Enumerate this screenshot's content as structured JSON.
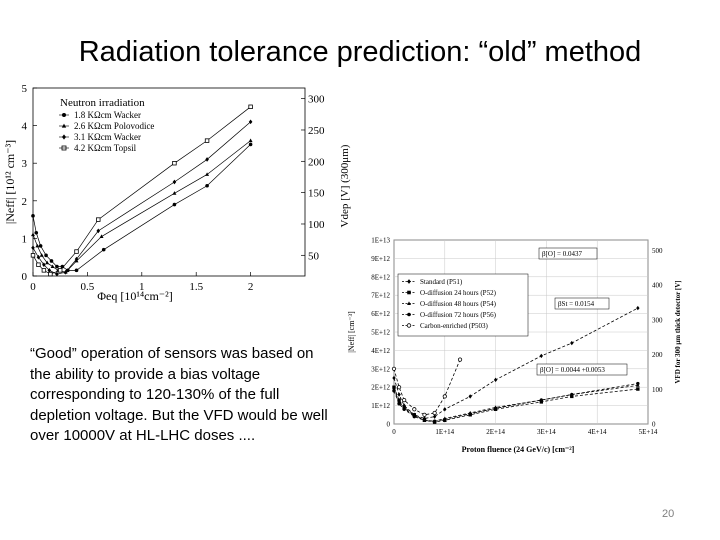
{
  "slide": {
    "title": "Radiation tolerance prediction: “old” method",
    "body": "“Good” operation of sensors was based on the ability to provide a bias voltage corresponding to 120-130% of the full depletion voltage.  But the VFD would be well over 10000V at HL-LHC doses ....",
    "page_number": "20"
  },
  "chart_data": [
    {
      "type": "line",
      "xlabel": "Φeq [10¹⁴cm⁻²]",
      "ylabel": "|Neff| [10¹² cm⁻³]",
      "y2label": "Vdep [V]  (300μm)",
      "xlim": [
        0,
        2.5
      ],
      "ylim": [
        0,
        5
      ],
      "xticks": [
        "0",
        "0.5",
        "1",
        "1.5",
        "2"
      ],
      "yticks": [
        "0",
        "1",
        "2",
        "3",
        "4",
        "5"
      ],
      "y2ticks": [
        "50",
        "100",
        "150",
        "200",
        "250",
        "300"
      ],
      "legend_title": "Neutron irradiation",
      "legend_position": "top-left",
      "series": [
        {
          "name": "1.8 KΩcm Wacker",
          "marker": "circle",
          "x": [
            0,
            0.03,
            0.07,
            0.12,
            0.17,
            0.22,
            0.27,
            0.32,
            0.4,
            0.65,
            1.3,
            1.6,
            2.0
          ],
          "y": [
            1.6,
            1.15,
            0.8,
            0.55,
            0.4,
            0.25,
            0.25,
            0.15,
            0.15,
            0.7,
            1.9,
            2.4,
            3.5
          ]
        },
        {
          "name": "2.6 KΩcm Polovodice",
          "marker": "triangle",
          "x": [
            0,
            0.04,
            0.08,
            0.13,
            0.18,
            0.23,
            0.3,
            0.4,
            0.63,
            1.3,
            1.6,
            2.0
          ],
          "y": [
            1.1,
            0.8,
            0.55,
            0.35,
            0.25,
            0.15,
            0.1,
            0.4,
            1.05,
            2.2,
            2.7,
            3.6
          ]
        },
        {
          "name": "3.1 KΩcm Wacker",
          "marker": "diamond",
          "x": [
            0,
            0.05,
            0.1,
            0.15,
            0.22,
            0.3,
            0.4,
            0.6,
            1.3,
            1.6,
            2.0
          ],
          "y": [
            0.75,
            0.5,
            0.3,
            0.15,
            0.05,
            0.1,
            0.45,
            1.2,
            2.5,
            3.1,
            4.1
          ]
        },
        {
          "name": "4.2 KΩcm Topsil",
          "marker": "open-square",
          "x": [
            0,
            0.05,
            0.1,
            0.16,
            0.25,
            0.4,
            0.6,
            1.3,
            1.6,
            2.0
          ],
          "y": [
            0.55,
            0.3,
            0.15,
            0.05,
            0.15,
            0.65,
            1.5,
            3.0,
            3.6,
            4.5
          ]
        }
      ]
    },
    {
      "type": "scatter",
      "xlabel": "Proton fluence (24 GeV/c) [cm⁻²]",
      "ylabel": "|Neff| [cm⁻³]",
      "y2label": "VFD for 300 μm thick detector [V]",
      "xlim": [
        0,
        500000000000000.0
      ],
      "ylim": [
        0,
        10000000000000.0
      ],
      "xticks": [
        "0",
        "1E+14",
        "2E+14",
        "3E+14",
        "4E+14",
        "5E+14"
      ],
      "yticks": [
        "0",
        "1E+12",
        "2E+12",
        "3E+12",
        "4E+12",
        "5E+12",
        "6E+12",
        "7E+12",
        "8E+12",
        "9E+12",
        "1E+13"
      ],
      "y2ticks": [
        "0",
        "100",
        "200",
        "300",
        "400",
        "500"
      ],
      "legend_position": "top-left",
      "annotations": [
        "β[O] = 0.0437",
        "βSt = 0.0154",
        "β[O] = 0.0044 +0.0053"
      ],
      "series": [
        {
          "name": "Standard (P51)",
          "marker": "diamond",
          "x": [
            0,
            10000000000000.0,
            20000000000000.0,
            40000000000000.0,
            60000000000000.0,
            80000000000000.0,
            100000000000000.0,
            150000000000000.0,
            200000000000000.0,
            290000000000000.0,
            350000000000000.0,
            480000000000000.0
          ],
          "y": [
            2500000000000.0,
            1600000000000.0,
            1000000000000.0,
            500000000000.0,
            300000000000.0,
            400000000000.0,
            800000000000.0,
            1500000000000.0,
            2400000000000.0,
            3700000000000.0,
            4400000000000.0,
            6300000000000.0
          ]
        },
        {
          "name": "O-diffusion 24 hours (P52)",
          "marker": "square",
          "x": [
            0,
            10000000000000.0,
            20000000000000.0,
            40000000000000.0,
            60000000000000.0,
            80000000000000.0,
            100000000000000.0,
            150000000000000.0,
            200000000000000.0,
            290000000000000.0,
            350000000000000.0,
            480000000000000.0
          ],
          "y": [
            2000000000000.0,
            1300000000000.0,
            900000000000.0,
            500000000000.0,
            200000000000.0,
            100000000000.0,
            200000000000.0,
            500000000000.0,
            800000000000.0,
            1200000000000.0,
            1500000000000.0,
            1900000000000.0
          ]
        },
        {
          "name": "O-diffusion 48 hours (P54)",
          "marker": "triangle",
          "x": [
            0,
            10000000000000.0,
            20000000000000.0,
            40000000000000.0,
            60000000000000.0,
            80000000000000.0,
            100000000000000.0,
            150000000000000.0,
            200000000000000.0,
            290000000000000.0,
            350000000000000.0,
            480000000000000.0
          ],
          "y": [
            1900000000000.0,
            1200000000000.0,
            850000000000.0,
            450000000000.0,
            200000000000.0,
            150000000000.0,
            300000000000.0,
            600000000000.0,
            900000000000.0,
            1300000000000.0,
            1600000000000.0,
            2100000000000.0
          ]
        },
        {
          "name": "O-diffusion 72 hours (P56)",
          "marker": "circle",
          "x": [
            0,
            10000000000000.0,
            20000000000000.0,
            40000000000000.0,
            60000000000000.0,
            80000000000000.0,
            100000000000000.0,
            150000000000000.0,
            200000000000000.0,
            290000000000000.0,
            350000000000000.0,
            480000000000000.0
          ],
          "y": [
            1800000000000.0,
            1100000000000.0,
            800000000000.0,
            400000000000.0,
            200000000000.0,
            150000000000.0,
            250000000000.0,
            550000000000.0,
            850000000000.0,
            1300000000000.0,
            1600000000000.0,
            2200000000000.0
          ]
        },
        {
          "name": "Carbon-enriched (P503)",
          "marker": "open-circle",
          "x": [
            0,
            10000000000000.0,
            20000000000000.0,
            40000000000000.0,
            60000000000000.0,
            80000000000000.0,
            100000000000000.0,
            130000000000000.0
          ],
          "y": [
            3000000000000.0,
            2000000000000.0,
            1300000000000.0,
            800000000000.0,
            500000000000.0,
            600000000000.0,
            1500000000000.0,
            3500000000000.0
          ]
        }
      ]
    }
  ]
}
